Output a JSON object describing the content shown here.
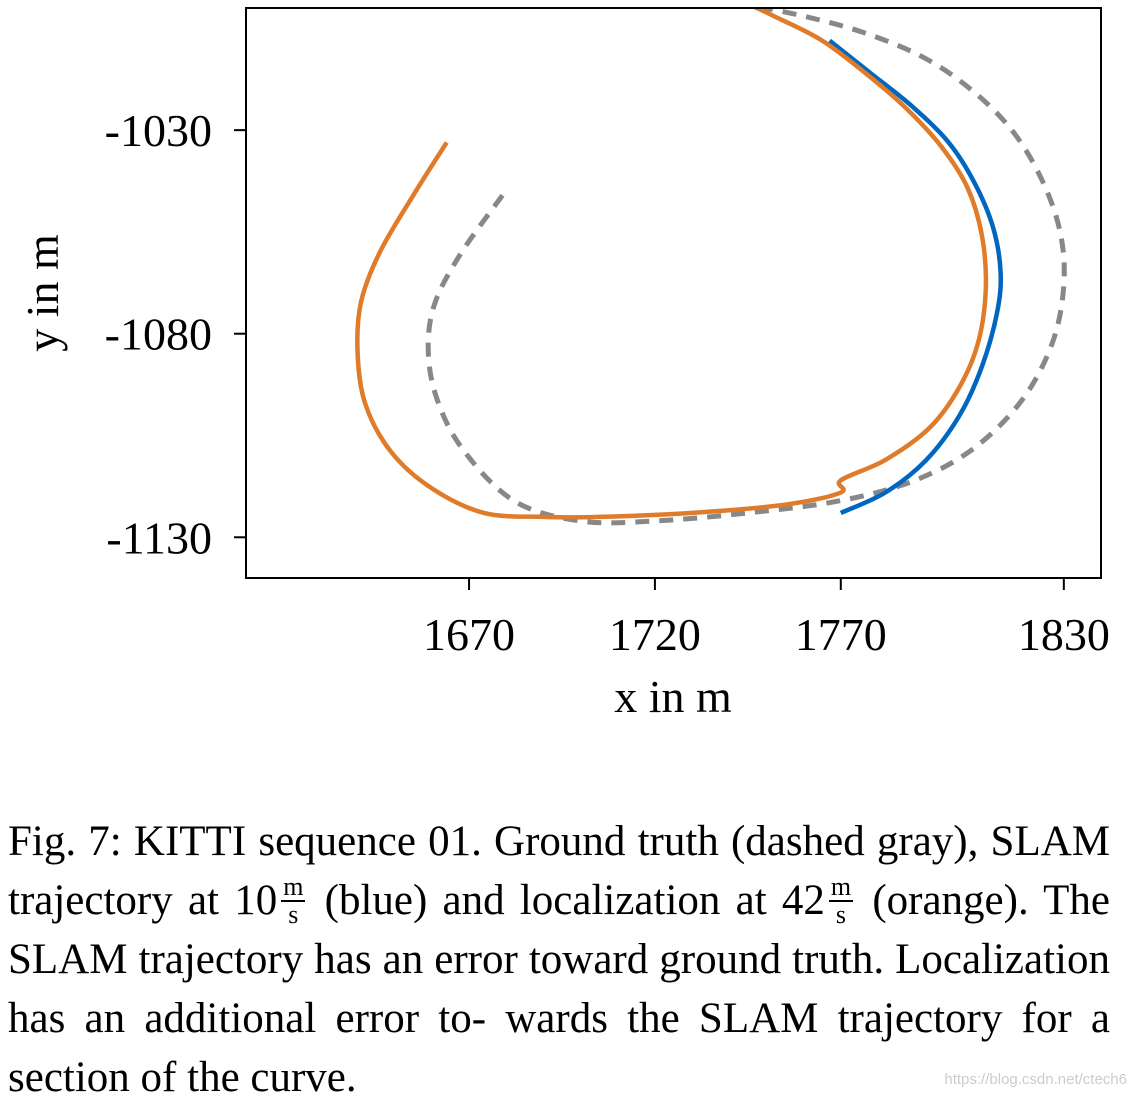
{
  "chart_data": {
    "type": "line",
    "xlabel": "x in m",
    "ylabel": "y in m",
    "xlim": [
      1610,
      1840
    ],
    "ylim": [
      -1140,
      -1000
    ],
    "xticks": [
      1670,
      1720,
      1770,
      1830
    ],
    "yticks": [
      -1030,
      -1080,
      -1130
    ],
    "xtick_labels": [
      "1670",
      "1720",
      "1770",
      "1830"
    ],
    "ytick_labels": [
      "-1030",
      "-1080",
      "-1130"
    ],
    "grid": false,
    "series": [
      {
        "name": "Ground truth",
        "color": "#888888",
        "style": "dashed",
        "x": [
          1679,
          1668,
          1661,
          1659,
          1661,
          1668,
          1682,
          1700,
          1720,
          1745,
          1770,
          1790,
          1806,
          1819,
          1827,
          1830,
          1829,
          1824,
          1816,
          1805,
          1792,
          1776,
          1760,
          1744
        ],
        "y": [
          -1046,
          -1060,
          -1072,
          -1083,
          -1095,
          -1108,
          -1121,
          -1126,
          -1126,
          -1124,
          -1121,
          -1116,
          -1108,
          -1096,
          -1082,
          -1068,
          -1055,
          -1042,
          -1030,
          -1020,
          -1012,
          -1006,
          -1002,
          -999
        ]
      },
      {
        "name": "SLAM trajectory (10 m/s)",
        "color": "#0066c0",
        "style": "solid",
        "x": [
          1770,
          1782,
          1793,
          1802,
          1808,
          1812,
          1813,
          1811,
          1806,
          1799,
          1789,
          1778,
          1767
        ],
        "y": [
          -1124,
          -1119,
          -1111,
          -1100,
          -1088,
          -1075,
          -1065,
          -1054,
          -1043,
          -1033,
          -1024,
          -1016,
          -1008
        ]
      },
      {
        "name": "Localization (42 m/s)",
        "color": "#e07b2a",
        "style": "solid",
        "x": [
          1664,
          1655,
          1646,
          1641,
          1640,
          1642,
          1649,
          1660,
          1674,
          1690,
          1705,
          1730,
          1755,
          1770,
          1770,
          1782,
          1794,
          1802,
          1807,
          1809,
          1808,
          1804,
          1797,
          1788,
          1778,
          1765,
          1752,
          1745
        ],
        "y": [
          -1033,
          -1046,
          -1060,
          -1072,
          -1084,
          -1097,
          -1109,
          -1118,
          -1124,
          -1125,
          -1125,
          -1124,
          -1122,
          -1119,
          -1116,
          -1111,
          -1103,
          -1093,
          -1082,
          -1069,
          -1056,
          -1044,
          -1034,
          -1025,
          -1017,
          -1008,
          -1002,
          -999
        ]
      }
    ]
  },
  "caption": {
    "part1": "Fig. 7: KITTI sequence 01. Ground truth (dashed gray), SLAM trajectory at ",
    "val1": "10",
    "unit1_num": "m",
    "unit1_den": "s",
    "part2": " (blue) and localization at ",
    "val2": "42",
    "unit2_num": "m",
    "unit2_den": "s",
    "part3": " (orange). The SLAM trajectory has an error toward ground truth. Localization has an additional error to- wards the SLAM trajectory for a section of the curve."
  },
  "watermark": "https://blog.csdn.net/ctech6"
}
